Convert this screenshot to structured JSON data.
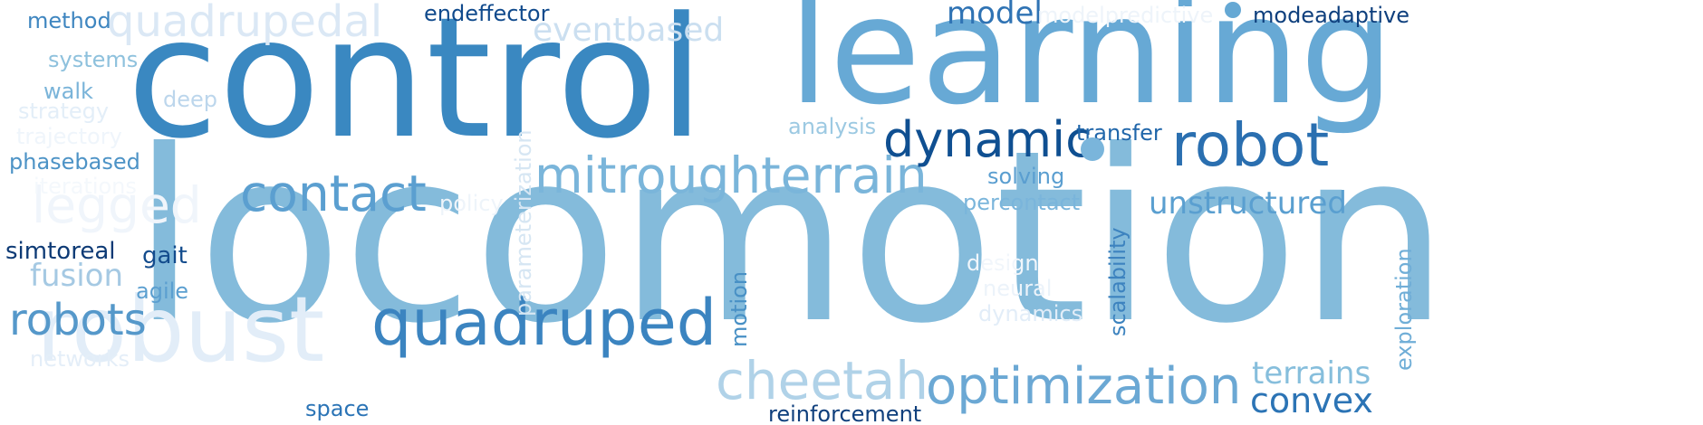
{
  "words": [
    {
      "text": "locomotion",
      "color": "#84bbdb"
    },
    {
      "text": "control",
      "color": "#3a88c1"
    },
    {
      "text": "learning",
      "color": "#67a9d5"
    },
    {
      "text": "robust",
      "color": "#e2edf8"
    },
    {
      "text": "quadruped",
      "color": "#3b84c0"
    },
    {
      "text": "mitroughterrain",
      "color": "#7ab5da"
    },
    {
      "text": "dynamic",
      "color": "#0f4f91"
    },
    {
      "text": "robot",
      "color": "#2a6fb0"
    },
    {
      "text": "contact",
      "color": "#5b9fd0"
    },
    {
      "text": "optimization",
      "color": "#6ba8d4"
    },
    {
      "text": "cheetah",
      "color": "#b0d2e8"
    },
    {
      "text": "legged",
      "color": "#f0f5fb"
    },
    {
      "text": "quadrupedal",
      "color": "#dbe8f5"
    },
    {
      "text": "robots",
      "color": "#5598ca"
    },
    {
      "text": "eventbased",
      "color": "#cbdff0"
    },
    {
      "text": "unstructured",
      "color": "#5a9fd0"
    },
    {
      "text": "convex",
      "color": "#2c74b5"
    },
    {
      "text": "terrains",
      "color": "#86bedc"
    },
    {
      "text": "fusion",
      "color": "#a5c9e3"
    },
    {
      "text": "model",
      "color": "#2f73b4"
    },
    {
      "text": "modeadaptive",
      "color": "#0e3f7d"
    },
    {
      "text": "modelpredictive",
      "color": "#eef4fa"
    },
    {
      "text": "endeffector",
      "color": "#104a8c"
    },
    {
      "text": "reinforcement",
      "color": "#0f3f7c"
    },
    {
      "text": "space",
      "color": "#2b74b6"
    },
    {
      "text": "analysis",
      "color": "#9cc9e2"
    },
    {
      "text": "transfer",
      "color": "#2066aa"
    },
    {
      "text": "solving",
      "color": "#5a9ed0"
    },
    {
      "text": "percontact",
      "color": "#7ab5db"
    },
    {
      "text": "simtoreal",
      "color": "#0d3a75"
    },
    {
      "text": "gait",
      "color": "#134c8d"
    },
    {
      "text": "agile",
      "color": "#5b9fd0"
    },
    {
      "text": "method",
      "color": "#3f86c0"
    },
    {
      "text": "systems",
      "color": "#8ec1dd"
    },
    {
      "text": "walk",
      "color": "#7ab4d9"
    },
    {
      "text": "deep",
      "color": "#bcd6ec"
    },
    {
      "text": "strategy",
      "color": "#e3eef8"
    },
    {
      "text": "trajectory",
      "color": "#eff5fb"
    },
    {
      "text": "phasebased",
      "color": "#4d93c6"
    },
    {
      "text": "iterations",
      "color": "#f4f8fc"
    },
    {
      "text": "policy",
      "color": "#eef4fa"
    },
    {
      "text": "networks",
      "color": "#e4eef8"
    },
    {
      "text": "design",
      "color": "#f1f6fb"
    },
    {
      "text": "neural",
      "color": "#ecf3fa"
    },
    {
      "text": "dynamics",
      "color": "#e2edf8"
    },
    {
      "text": "parameterization",
      "color": "#d6e6f3"
    },
    {
      "text": "motion",
      "color": "#4890c5"
    },
    {
      "text": "scalability",
      "color": "#3d83bf"
    },
    {
      "text": "exploration",
      "color": "#70aed7"
    }
  ]
}
